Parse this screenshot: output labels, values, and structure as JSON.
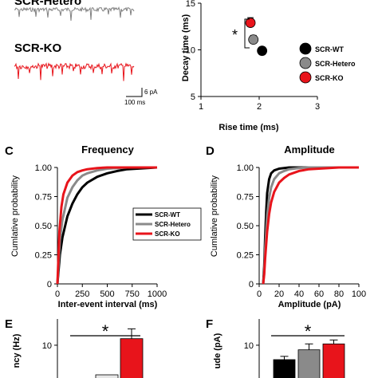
{
  "chart_data": [
    {
      "id": "traces",
      "type": "trace",
      "labels": [
        "SCR-Hetero",
        "SCR-KO"
      ],
      "colors": [
        "#808080",
        "#e8141b"
      ],
      "scalebar": {
        "y_label": "6 pA",
        "x_label": "100 ms"
      }
    },
    {
      "id": "decay_vs_rise",
      "type": "scatter",
      "xlabel": "Rise time (ms)",
      "ylabel": "Decay time (ms)",
      "xlim": [
        1,
        3
      ],
      "ylim": [
        5,
        15
      ],
      "xticks": [
        1,
        2,
        3
      ],
      "yticks": [
        5,
        10,
        15
      ],
      "series": [
        {
          "name": "SCR-WT",
          "color": "#000000",
          "x": 2.05,
          "y": 9.9,
          "yerr": 0
        },
        {
          "name": "SCR-Hetero",
          "color": "#8a8a8a",
          "x": 1.9,
          "y": 11.1,
          "yerr": 0.45
        },
        {
          "name": "SCR-KO",
          "color": "#e8141b",
          "x": 1.85,
          "y": 12.9,
          "yerr": 0.55
        }
      ],
      "annotation": "*",
      "legend_position": "right"
    },
    {
      "id": "frequency_cdf",
      "panel_label": "C",
      "type": "line",
      "title": "Frequency",
      "xlabel": "Inter-event interval (ms)",
      "ylabel": "Cumlative probability",
      "xlim": [
        0,
        1000
      ],
      "ylim": [
        0,
        1
      ],
      "xticks": [
        0,
        250,
        500,
        750,
        1000
      ],
      "yticks": [
        0,
        0.25,
        0.5,
        0.75,
        1
      ],
      "ytick_labels": [
        "0",
        "0.25",
        "0.50",
        "0.75",
        "1.00"
      ],
      "series": [
        {
          "name": "SCR-WT",
          "color": "#000000",
          "x": [
            0,
            25,
            50,
            100,
            150,
            200,
            250,
            300,
            400,
            500,
            600,
            700,
            800,
            900,
            1000
          ],
          "y": [
            0,
            0.25,
            0.4,
            0.58,
            0.69,
            0.77,
            0.83,
            0.87,
            0.92,
            0.95,
            0.97,
            0.985,
            0.99,
            0.995,
            1
          ]
        },
        {
          "name": "SCR-Hetero",
          "color": "#8a8a8a",
          "x": [
            0,
            25,
            50,
            100,
            150,
            200,
            250,
            300,
            400,
            500,
            600,
            700,
            800,
            1000
          ],
          "y": [
            0,
            0.38,
            0.55,
            0.74,
            0.83,
            0.89,
            0.93,
            0.95,
            0.975,
            0.99,
            0.995,
            1,
            1,
            1
          ]
        },
        {
          "name": "SCR-KO",
          "color": "#e8141b",
          "x": [
            0,
            20,
            40,
            60,
            100,
            150,
            200,
            250,
            300,
            400,
            500,
            700,
            1000
          ],
          "y": [
            0,
            0.45,
            0.66,
            0.77,
            0.87,
            0.93,
            0.96,
            0.975,
            0.985,
            0.995,
            1,
            1,
            1
          ]
        }
      ],
      "legend_position": "bottom-right"
    },
    {
      "id": "amplitude_cdf",
      "panel_label": "D",
      "type": "line",
      "title": "Amplitude",
      "xlabel": "Amplitude (pA)",
      "ylabel": "Cumlative probability",
      "xlim": [
        0,
        100
      ],
      "ylim": [
        0,
        1
      ],
      "xticks": [
        0,
        20,
        40,
        60,
        80,
        100
      ],
      "yticks": [
        0,
        0.25,
        0.5,
        0.75,
        1
      ],
      "ytick_labels": [
        "0",
        "0.25",
        "0.50",
        "0.75",
        "1.00"
      ],
      "series": [
        {
          "name": "SCR-WT",
          "color": "#000000",
          "x": [
            4,
            5,
            6,
            7,
            8,
            10,
            12,
            15,
            20,
            30,
            40,
            100
          ],
          "y": [
            0,
            0.15,
            0.4,
            0.62,
            0.78,
            0.9,
            0.95,
            0.975,
            0.99,
            1,
            1,
            1
          ]
        },
        {
          "name": "SCR-Hetero",
          "color": "#8a8a8a",
          "x": [
            4,
            5,
            6,
            8,
            10,
            12,
            15,
            20,
            25,
            30,
            40,
            50,
            100
          ],
          "y": [
            0,
            0.1,
            0.3,
            0.58,
            0.74,
            0.83,
            0.9,
            0.95,
            0.97,
            0.985,
            0.995,
            1,
            1
          ]
        },
        {
          "name": "SCR-KO",
          "color": "#e8141b",
          "x": [
            4,
            5,
            6,
            8,
            10,
            12,
            15,
            20,
            25,
            30,
            40,
            50,
            60,
            80,
            100
          ],
          "y": [
            0,
            0.08,
            0.22,
            0.45,
            0.6,
            0.7,
            0.79,
            0.87,
            0.91,
            0.94,
            0.97,
            0.985,
            0.99,
            1,
            1
          ]
        }
      ]
    },
    {
      "id": "frequency_bar",
      "panel_label": "E",
      "type": "bar",
      "ylabel": "ncy (Hz)",
      "yticks": [
        10
      ],
      "annotation": "*",
      "bars": [
        {
          "color": "#e6e6e6",
          "value": 0,
          "err": 0
        },
        {
          "color": "#e8141b",
          "value": 11,
          "err": 1.5
        }
      ]
    },
    {
      "id": "amplitude_bar",
      "panel_label": "F",
      "type": "bar",
      "ylabel": "ude (pA)",
      "yticks": [
        10
      ],
      "annotation": "*",
      "bars": [
        {
          "color": "#000000",
          "value": 7.8,
          "err": 0.5
        },
        {
          "color": "#8a8a8a",
          "value": 9.3,
          "err": 0.9
        },
        {
          "color": "#e8141b",
          "value": 10.2,
          "err": 0.6
        }
      ]
    }
  ]
}
